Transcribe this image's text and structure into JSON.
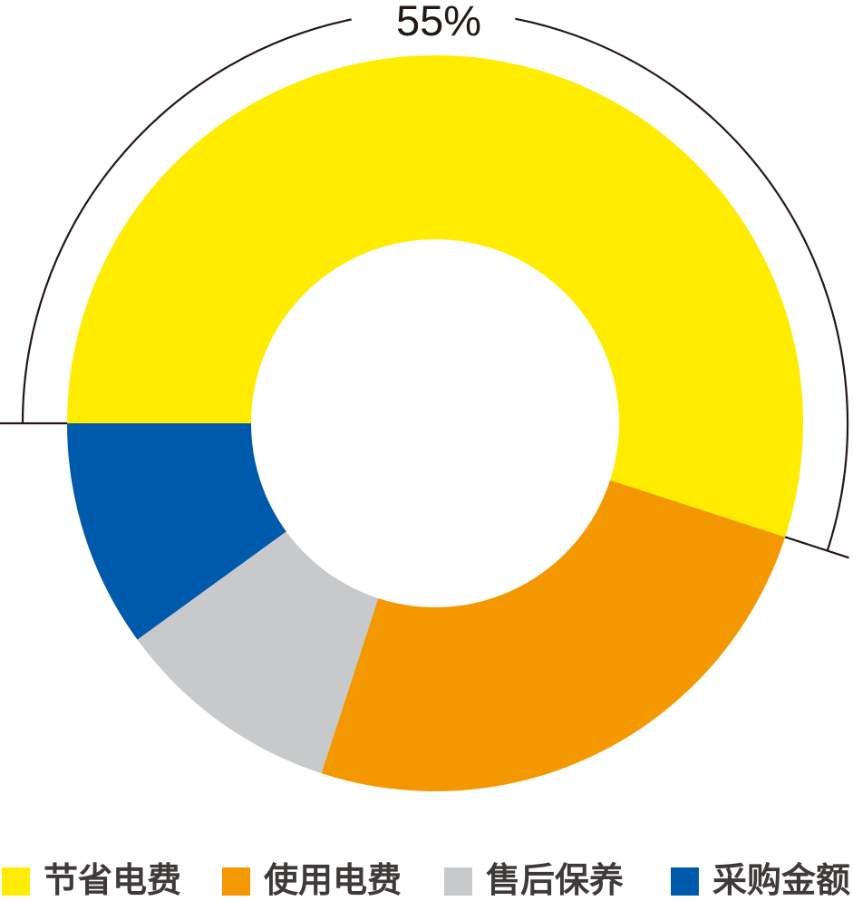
{
  "chart_data": {
    "type": "donut",
    "title": "",
    "segments": [
      {
        "label": "节省电费",
        "value": 55,
        "color": "#ffec00"
      },
      {
        "label": "使用电费",
        "value": 25,
        "color": "#f39800"
      },
      {
        "label": "售后保养",
        "value": 10,
        "color": "#c8c9ca"
      },
      {
        "label": "采购金额",
        "value": 10,
        "color": "#005aab"
      }
    ],
    "start_angle_deg": 180,
    "direction": "clockwise",
    "donut_hole_ratio": 0.5,
    "legend_position": "bottom",
    "annotation": {
      "segment_label": "节省电费",
      "text": "55%",
      "style": "outer-bracket-arc"
    },
    "line_color": "#231815",
    "legend_text_color": "#3e3a39",
    "background_color": "#ffffff"
  }
}
